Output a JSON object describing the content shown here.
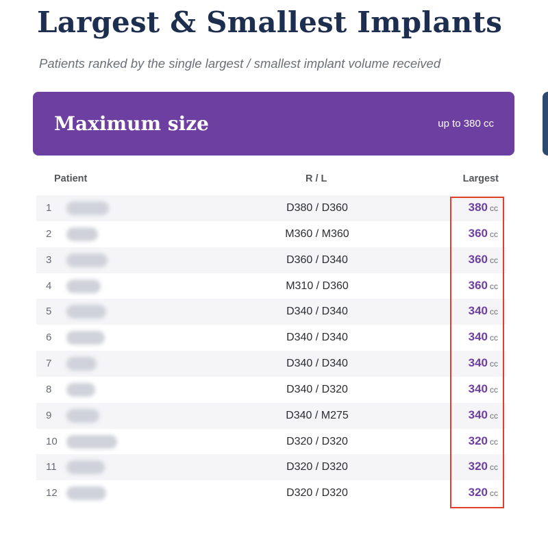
{
  "page": {
    "title": "Largest & Smallest Implants",
    "subtitle": "Patients ranked by the single largest / smallest implant volume received"
  },
  "card": {
    "title": "Maximum size",
    "range": "up to 380 cc"
  },
  "table": {
    "columns": {
      "patient": "Patient",
      "rl": "R / L",
      "largest": "Largest"
    },
    "unit": "cc",
    "rows": [
      {
        "rank": "1",
        "rl": "D380 / D360",
        "value": "380"
      },
      {
        "rank": "2",
        "rl": "M360 / M360",
        "value": "360"
      },
      {
        "rank": "3",
        "rl": "D360 / D340",
        "value": "360"
      },
      {
        "rank": "4",
        "rl": "M310 / D360",
        "value": "360"
      },
      {
        "rank": "5",
        "rl": "D340 / D340",
        "value": "340"
      },
      {
        "rank": "6",
        "rl": "D340 / D340",
        "value": "340"
      },
      {
        "rank": "7",
        "rl": "D340 / D340",
        "value": "340"
      },
      {
        "rank": "8",
        "rl": "D340 / D320",
        "value": "340"
      },
      {
        "rank": "9",
        "rl": "D340 / M275",
        "value": "340"
      },
      {
        "rank": "10",
        "rl": "D320 / D320",
        "value": "320"
      },
      {
        "rank": "11",
        "rl": "D320 / D320",
        "value": "320"
      },
      {
        "rank": "12",
        "rl": "D320 / D320",
        "value": "320"
      }
    ]
  },
  "colors": {
    "title": "#1e2e4f",
    "accent": "#6d3fa0",
    "highlight_border": "#e0402a",
    "row_alt": "#f5f5f8"
  }
}
